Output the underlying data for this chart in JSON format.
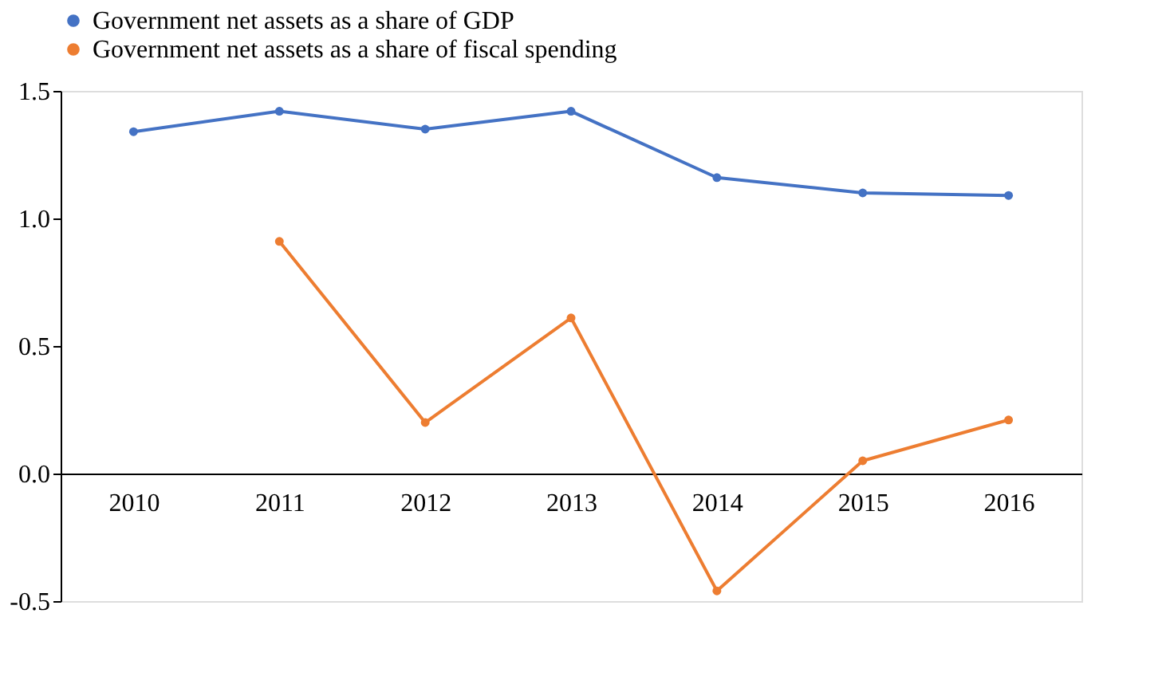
{
  "chart_data": {
    "type": "line",
    "categories": [
      "2010",
      "2011",
      "2012",
      "2013",
      "2014",
      "2015",
      "2016"
    ],
    "series": [
      {
        "name": "Government net assets as a share of GDP",
        "color": "#4472c4",
        "values": [
          1.34,
          1.42,
          1.35,
          1.42,
          1.16,
          1.1,
          1.09
        ]
      },
      {
        "name": "Government net assets as a share of fiscal spending",
        "color": "#ed7d31",
        "values": [
          null,
          0.91,
          0.2,
          0.61,
          -0.46,
          0.05,
          0.21
        ]
      }
    ],
    "ylim": [
      -0.5,
      1.5
    ],
    "yticks": [
      {
        "value": -0.5,
        "label": "-0.5"
      },
      {
        "value": 0,
        "label": "0.0"
      },
      {
        "value": 0.5,
        "label": "0.5"
      },
      {
        "value": 1,
        "label": "1.0"
      },
      {
        "value": 1.5,
        "label": "1.5"
      }
    ],
    "grid": false,
    "legend": "top",
    "marker": "circle",
    "line_style": "solid"
  }
}
